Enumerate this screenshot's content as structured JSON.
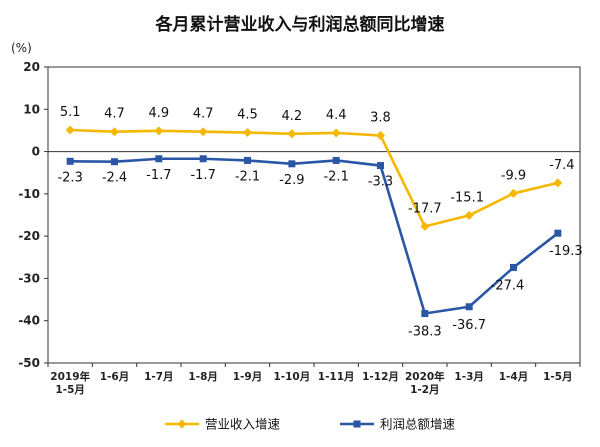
{
  "chart_data": {
    "type": "line",
    "title": "各月累计营业收入与利润总额同比增速",
    "unit_label": "(%)",
    "categories": [
      [
        "2019年",
        "1-5月"
      ],
      [
        "1-6月"
      ],
      [
        "1-7月"
      ],
      [
        "1-8月"
      ],
      [
        "1-9月"
      ],
      [
        "1-10月"
      ],
      [
        "1-11月"
      ],
      [
        "1-12月"
      ],
      [
        "2020年",
        "1-2月"
      ],
      [
        "1-3月"
      ],
      [
        "1-4月"
      ],
      [
        "1-5月"
      ]
    ],
    "ylim": [
      -50,
      20
    ],
    "yticks": [
      20,
      10,
      0,
      -10,
      -20,
      -30,
      -40,
      -50
    ],
    "grid": false,
    "legend_position": "bottom",
    "series": [
      {
        "name": "营业收入增速",
        "color": "#F5B800",
        "marker": "diamond",
        "values": [
          5.1,
          4.7,
          4.9,
          4.7,
          4.5,
          4.2,
          4.4,
          3.8,
          -17.7,
          -15.1,
          -9.9,
          -7.4
        ],
        "labels": [
          "5.1",
          "4.7",
          "4.9",
          "4.7",
          "4.5",
          "4.2",
          "4.4",
          "3.8",
          "-17.7",
          "-15.1",
          "-9.9",
          "-7.4"
        ]
      },
      {
        "name": "利润总额增速",
        "color": "#2A56A6",
        "marker": "square",
        "values": [
          -2.3,
          -2.4,
          -1.7,
          -1.7,
          -2.1,
          -2.9,
          -2.1,
          -3.3,
          -38.3,
          -36.7,
          -27.4,
          -19.3
        ],
        "labels": [
          "-2.3",
          "-2.4",
          "-1.7",
          "-1.7",
          "-2.1",
          "-2.9",
          "-2.1",
          "-3.3",
          "-38.3",
          "-36.7",
          "-27.4",
          "-19.3"
        ]
      }
    ]
  }
}
